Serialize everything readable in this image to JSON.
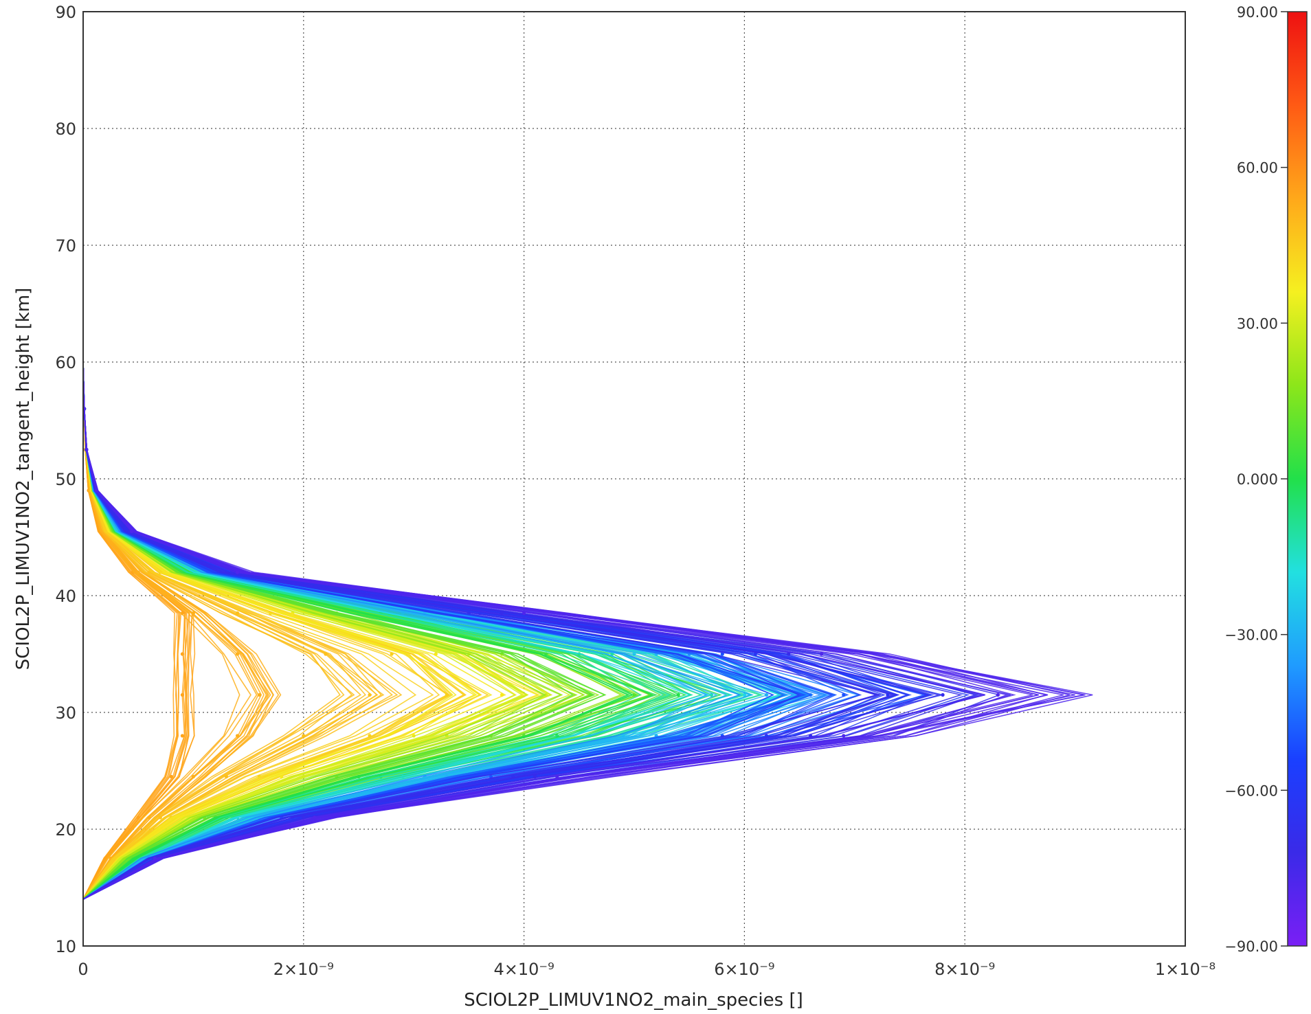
{
  "chart_data": {
    "type": "line",
    "title": "",
    "xlabel": "SCIOL2P_LIMUV1NO2_main_species []",
    "ylabel": "SCIOL2P_LIMUV1NO2_tangent_height [km]",
    "xlim": [
      0,
      1e-08
    ],
    "ylim": [
      10,
      90
    ],
    "grid": true,
    "x_tick_labels": [
      "0",
      "2×10⁻⁹",
      "4×10⁻⁹",
      "6×10⁻⁹",
      "8×10⁻⁹",
      "1×10⁻⁸"
    ],
    "x_tick_values": [
      0,
      2e-09,
      4e-09,
      6e-09,
      8e-09,
      1e-08
    ],
    "y_tick_labels": [
      "10",
      "20",
      "30",
      "40",
      "50",
      "60",
      "70",
      "80",
      "90"
    ],
    "y_tick_values": [
      10,
      20,
      30,
      40,
      50,
      60,
      70,
      80,
      90
    ],
    "colorbar": {
      "position": "right",
      "range": [
        -90,
        90
      ],
      "tick_labels": [
        "90.00",
        "60.00",
        "30.00",
        "0.000",
        "−30.00",
        "−60.00",
        "−90.00"
      ],
      "tick_values": [
        90,
        60,
        30,
        0,
        -30,
        -60,
        -90
      ],
      "colors": [
        "#7a1ff5",
        "#3a2ae8",
        "#1a40ff",
        "#1f9bff",
        "#22e0e0",
        "#22e04a",
        "#8ce61a",
        "#f5f020",
        "#ffa81a",
        "#ff5a14",
        "#ee1111"
      ]
    },
    "heights": [
      14,
      17.5,
      21,
      24.5,
      28,
      31.5,
      35,
      38.5,
      42,
      45.5,
      49,
      52.5,
      56,
      60,
      66,
      75,
      90
    ],
    "series": [
      {
        "latitude": 55,
        "values": [
          0,
          2e-10,
          5e-10,
          8e-10,
          9e-10,
          9e-10,
          9e-10,
          9e-10,
          4.5e-10,
          1.5e-10,
          5e-11,
          2e-11,
          1e-11,
          0,
          0,
          0,
          0
        ]
      },
      {
        "latitude": 52,
        "values": [
          0,
          2.5e-10,
          6e-10,
          1e-09,
          1.4e-09,
          1.6e-09,
          1.4e-09,
          1e-09,
          5e-10,
          1.8e-10,
          6e-11,
          2e-11,
          1e-11,
          0,
          0,
          0,
          0
        ]
      },
      {
        "latitude": 48,
        "values": [
          0,
          3e-10,
          7e-10,
          1.3e-09,
          2e-09,
          2.6e-09,
          2.2e-09,
          1.4e-09,
          6e-10,
          2e-10,
          7e-11,
          2e-11,
          1e-11,
          0,
          0,
          0,
          0
        ]
      },
      {
        "latitude": 44,
        "values": [
          0,
          3e-10,
          8e-10,
          1.6e-09,
          2.6e-09,
          3.3e-09,
          2.8e-09,
          1.7e-09,
          7e-10,
          2.2e-10,
          8e-11,
          3e-11,
          1e-11,
          0,
          0,
          0,
          0
        ]
      },
      {
        "latitude": 38,
        "values": [
          0,
          3.5e-10,
          9e-10,
          1.8e-09,
          3e-09,
          3.8e-09,
          3.2e-09,
          1.9e-09,
          8e-10,
          2.5e-10,
          8e-11,
          3e-11,
          1e-11,
          0,
          0,
          0,
          0
        ]
      },
      {
        "latitude": 30,
        "values": [
          0,
          3.5e-10,
          1e-09,
          2e-09,
          3.3e-09,
          4.2e-09,
          3.5e-09,
          2.1e-09,
          8.5e-10,
          2.7e-10,
          9e-11,
          3e-11,
          1e-11,
          0,
          0,
          0,
          0
        ]
      },
      {
        "latitude": 20,
        "values": [
          0,
          4e-10,
          1.1e-09,
          2.3e-09,
          3.7e-09,
          4.6e-09,
          3.8e-09,
          2.3e-09,
          9e-10,
          2.8e-10,
          9e-11,
          3e-11,
          1e-11,
          0,
          0,
          0,
          0
        ]
      },
      {
        "latitude": 10,
        "values": [
          0,
          4.5e-10,
          1.2e-09,
          2.5e-09,
          4e-09,
          5e-09,
          4.2e-09,
          2.5e-09,
          9.5e-10,
          3e-10,
          1e-10,
          3e-11,
          1e-11,
          0,
          0,
          0,
          0
        ]
      },
      {
        "latitude": 0,
        "values": [
          0,
          5e-10,
          1.3e-09,
          2.7e-09,
          4.3e-09,
          5.4e-09,
          4.5e-09,
          2.7e-09,
          1e-09,
          3.2e-10,
          1e-10,
          3e-11,
          1e-11,
          0,
          0,
          0,
          0
        ]
      },
      {
        "latitude": -10,
        "values": [
          0,
          5.5e-10,
          1.4e-09,
          2.9e-09,
          4.6e-09,
          5.7e-09,
          4.8e-09,
          2.9e-09,
          1.05e-09,
          3.3e-10,
          1e-10,
          3e-11,
          1e-11,
          0,
          0,
          0,
          0
        ]
      },
      {
        "latitude": -20,
        "values": [
          0,
          6e-10,
          1.5e-09,
          3.1e-09,
          4.9e-09,
          6e-09,
          5e-09,
          3e-09,
          1.1e-09,
          3.4e-10,
          1e-10,
          3e-11,
          1e-11,
          0,
          0,
          0,
          0
        ]
      },
      {
        "latitude": -30,
        "values": [
          0,
          6e-10,
          1.6e-09,
          3.3e-09,
          5.2e-09,
          6.2e-09,
          5.2e-09,
          3.1e-09,
          1.15e-09,
          3.5e-10,
          1e-10,
          3e-11,
          1e-11,
          0,
          0,
          0,
          0
        ]
      },
      {
        "latitude": -40,
        "values": [
          0,
          6e-10,
          1.7e-09,
          3.5e-09,
          5.5e-09,
          6.6e-09,
          5.5e-09,
          3.3e-09,
          1.2e-09,
          3.7e-10,
          1.1e-10,
          3e-11,
          1e-11,
          0,
          0,
          0,
          0
        ]
      },
      {
        "latitude": -50,
        "values": [
          0,
          6.5e-10,
          1.8e-09,
          3.7e-09,
          5.8e-09,
          6.9e-09,
          5.8e-09,
          3.5e-09,
          1.25e-09,
          3.8e-10,
          1.1e-10,
          3e-11,
          1e-11,
          0,
          0,
          0,
          0
        ]
      },
      {
        "latitude": -60,
        "values": [
          0,
          6.5e-10,
          1.9e-09,
          3.9e-09,
          6.2e-09,
          7.3e-09,
          6.1e-09,
          3.6e-09,
          1.3e-09,
          4e-10,
          1.2e-10,
          3e-11,
          1e-11,
          0,
          0,
          0,
          0
        ]
      },
      {
        "latitude": -70,
        "values": [
          0,
          6.5e-10,
          2e-09,
          4.1e-09,
          6.6e-09,
          7.8e-09,
          6.4e-09,
          3.8e-09,
          1.35e-09,
          4.2e-10,
          1.2e-10,
          3e-11,
          1e-11,
          0,
          0,
          0,
          0
        ]
      },
      {
        "latitude": -78,
        "values": [
          0,
          6.5e-10,
          2.1e-09,
          4.3e-09,
          6.9e-09,
          8.3e-09,
          6.7e-09,
          4e-09,
          1.4e-09,
          4.4e-10,
          1.2e-10,
          3e-11,
          1e-11,
          0,
          0,
          0,
          0
        ]
      }
    ]
  }
}
